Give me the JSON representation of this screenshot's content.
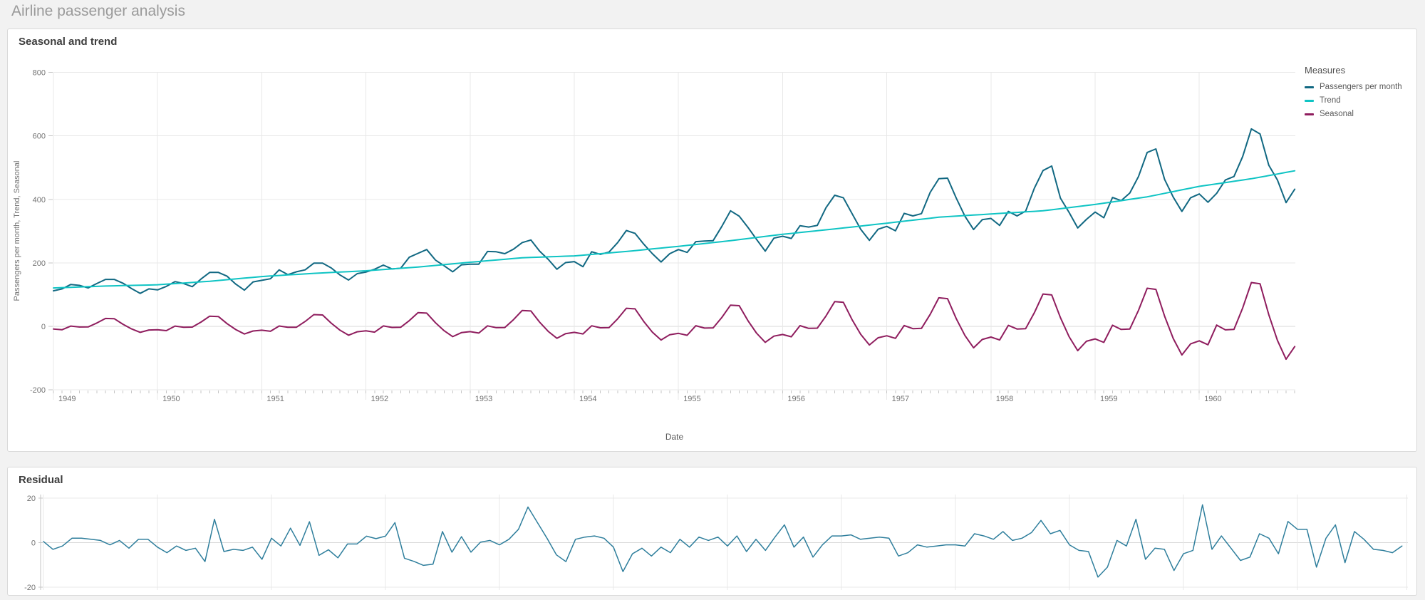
{
  "page": {
    "title": "Airline passenger analysis"
  },
  "cards": {
    "seasonal_trend": {
      "title": "Seasonal and trend"
    },
    "residual": {
      "title": "Residual"
    }
  },
  "legend": {
    "title": "Measures",
    "items": [
      {
        "label": "Passengers per month",
        "color": "#116882"
      },
      {
        "label": "Trend",
        "color": "#0fc4c4"
      },
      {
        "label": "Seasonal",
        "color": "#8f1d5e"
      }
    ]
  },
  "colors": {
    "grid": "#e8e8e8",
    "zero_line": "#d9d9d9",
    "tick": "#c6c6c6",
    "axis_text": "#737373",
    "axis_label_text": "#595959"
  },
  "chart_data": [
    {
      "type": "line",
      "title": "Seasonal and trend",
      "xlabel": "Date",
      "ylabel": "Passengers per month, Trend, Seasonal",
      "x_tick_labels": [
        "1949",
        "1950",
        "1951",
        "1952",
        "1953",
        "1954",
        "1955",
        "1956",
        "1957",
        "1958",
        "1959",
        "1960"
      ],
      "months_per_tick": 12,
      "n_points": 144,
      "ylim": [
        -200,
        800
      ],
      "yticks": [
        800,
        600,
        400,
        200,
        0,
        -200
      ],
      "grid": true,
      "legend_position": "right",
      "series": [
        {
          "name": "Passengers per month",
          "color": "#116882",
          "values": [
            112,
            118,
            132,
            129,
            121,
            135,
            148,
            148,
            136,
            119,
            104,
            118,
            115,
            126,
            141,
            135,
            125,
            149,
            170,
            170,
            158,
            133,
            114,
            140,
            145,
            150,
            178,
            163,
            172,
            178,
            199,
            199,
            184,
            162,
            146,
            166,
            171,
            180,
            193,
            181,
            183,
            218,
            230,
            242,
            209,
            191,
            172,
            194,
            196,
            196,
            236,
            235,
            229,
            243,
            264,
            272,
            237,
            211,
            180,
            201,
            204,
            188,
            235,
            227,
            234,
            264,
            302,
            293,
            259,
            229,
            203,
            229,
            242,
            233,
            267,
            269,
            270,
            315,
            364,
            347,
            312,
            274,
            237,
            278,
            284,
            277,
            317,
            313,
            318,
            374,
            413,
            405,
            355,
            306,
            271,
            306,
            315,
            301,
            356,
            348,
            355,
            422,
            465,
            467,
            404,
            347,
            305,
            336,
            340,
            318,
            362,
            348,
            363,
            435,
            491,
            505,
            404,
            359,
            310,
            337,
            360,
            342,
            406,
            396,
            420,
            472,
            548,
            559,
            463,
            407,
            362,
            405,
            417,
            391,
            419,
            461,
            472,
            535,
            622,
            606,
            508,
            461,
            390,
            432
          ]
        },
        {
          "name": "Trend",
          "color": "#0fc4c4",
          "values": [
            121,
            122,
            123,
            124,
            125,
            126,
            127,
            127.7,
            128.3,
            129,
            129.7,
            130.3,
            131,
            132.8,
            134.7,
            136.5,
            138.3,
            140.2,
            142,
            144.5,
            147,
            149.5,
            152,
            154.5,
            157,
            158.7,
            160.3,
            162,
            163.7,
            165.3,
            167,
            168.3,
            169.7,
            171,
            172.3,
            173.7,
            175,
            177,
            179,
            181,
            183,
            185,
            187,
            189.5,
            192,
            194.5,
            197,
            199.5,
            202,
            204.3,
            206.7,
            209,
            211.3,
            213.7,
            216,
            217,
            218,
            219,
            220,
            221,
            222,
            224.3,
            226.7,
            229,
            231.3,
            233.7,
            236,
            238.7,
            241.3,
            244,
            246.7,
            249.3,
            252,
            255,
            258,
            261,
            264,
            267,
            270,
            273.3,
            276.7,
            280,
            283.3,
            286.7,
            290,
            292.8,
            295.7,
            298.5,
            301.3,
            304.2,
            307,
            310,
            313,
            316,
            319,
            322,
            325,
            328.2,
            331.3,
            334.5,
            337.7,
            340.8,
            344,
            345.7,
            347.3,
            349,
            350.7,
            352.3,
            354,
            355.7,
            357.3,
            359,
            360.7,
            362.3,
            364,
            367.3,
            370.7,
            374,
            377.3,
            380.7,
            384,
            388,
            392,
            396,
            400,
            404,
            408,
            413.5,
            419,
            424.5,
            430,
            435.5,
            441,
            445,
            449,
            453,
            457,
            461,
            465,
            470,
            475,
            480,
            485,
            490
          ]
        },
        {
          "name": "Seasonal",
          "color": "#8f1d5e",
          "values": [
            -8.3,
            -10.5,
            0.8,
            -2,
            -1.8,
            10.5,
            25,
            24.3,
            6.8,
            -8,
            -18.8,
            -11.5,
            -10.6,
            -13.4,
            1,
            -2.6,
            -2.2,
            13.4,
            32,
            31,
            8.6,
            -10.2,
            -24,
            -14.7,
            -12.2,
            -15.5,
            1.1,
            -3,
            -2.6,
            15.5,
            37,
            35.9,
            10,
            -11.8,
            -27.8,
            -17,
            -14.2,
            -18.1,
            1.3,
            -3.4,
            -3,
            18.1,
            43,
            41.7,
            11.6,
            -13.8,
            -32.3,
            -19.8,
            -16.5,
            -21,
            1.5,
            -4,
            -3.5,
            21,
            50,
            48.5,
            13.5,
            -16,
            -37.5,
            -23,
            -18.8,
            -23.9,
            1.7,
            -4.6,
            -4,
            23.9,
            57,
            55.3,
            15.4,
            -18.2,
            -42.8,
            -26.2,
            -22.1,
            -28.1,
            2,
            -5.4,
            -4.7,
            28.1,
            67,
            65,
            18.1,
            -21.4,
            -50.3,
            -30.8,
            -25.7,
            -32.8,
            2.3,
            -6.2,
            -5.5,
            32.8,
            78,
            75.7,
            21.1,
            -25,
            -58.5,
            -35.9,
            -29.7,
            -37.8,
            2.7,
            -7.2,
            -6.3,
            37.8,
            90,
            87.3,
            24.3,
            -28.8,
            -67.5,
            -41.4,
            -33.7,
            -42.8,
            3.1,
            -8.2,
            -7.1,
            42.8,
            102,
            98.9,
            27.5,
            -32.6,
            -76.5,
            -46.9,
            -39.6,
            -50.4,
            3.6,
            -9.6,
            -8.4,
            50.4,
            120,
            116.4,
            32.4,
            -38.4,
            -90,
            -55.2,
            -45.5,
            -58,
            4.1,
            -11,
            -9.7,
            58,
            138,
            133.9,
            37.3,
            -44.2,
            -103.5,
            -63.5
          ]
        }
      ]
    },
    {
      "type": "line",
      "title": "Residual",
      "xlabel": "",
      "ylabel": "",
      "x_tick_labels": [],
      "months_per_tick": 12,
      "n_points": 144,
      "ylim": [
        -21.5,
        21.5
      ],
      "yticks": [
        20,
        0,
        -20
      ],
      "grid": true,
      "legend_position": "none",
      "series": [
        {
          "name": "Residual",
          "color": "#2e7e9c",
          "values": [
            0.5,
            -3,
            -1.5,
            2,
            2,
            1.5,
            1,
            -1,
            1,
            -2.5,
            1.5,
            1.5,
            -2,
            -4.5,
            -1.5,
            -3.5,
            -2.5,
            -8.5,
            10.5,
            -4,
            -3,
            -3.5,
            -2,
            -7.5,
            2,
            -1.5,
            6.5,
            -1.2,
            9.4,
            -5.7,
            -3.2,
            -6.8,
            -0.6,
            -0.6,
            2.9,
            1.8,
            2.9,
            9,
            -7,
            -8.4,
            -10.2,
            -9.7,
            5,
            -4.3,
            2.7,
            -4.3,
            0.2,
            1,
            -1,
            1.5,
            6,
            16,
            9,
            2,
            -5.5,
            -8.5,
            1.5,
            2.5,
            3,
            2,
            -2,
            -13,
            -5,
            -2.5,
            -6,
            -2,
            -4.5,
            1.5,
            -2,
            2.5,
            1,
            2.5,
            -1.5,
            3,
            -4,
            1.5,
            -3.5,
            2.5,
            8,
            -2,
            2.5,
            -6.5,
            -1,
            3,
            3,
            3.5,
            1.5,
            2,
            2.5,
            2,
            -6,
            -4.5,
            -1,
            -2,
            -1.5,
            -1,
            -1,
            -1.5,
            4,
            3,
            1.5,
            5,
            1,
            2,
            4.5,
            10,
            4,
            5.5,
            -1,
            -3.5,
            -4,
            -15.5,
            -11,
            1,
            -1.5,
            10.5,
            -7.5,
            -2.5,
            -3,
            -12.5,
            -5,
            -3.5,
            17,
            -3,
            3,
            -2.5,
            -8,
            -6.5,
            4,
            2,
            -5,
            9.5,
            6,
            6,
            -11,
            2,
            8,
            -9,
            5,
            1.5,
            -3,
            -3.5,
            -4.5,
            -1.5
          ]
        }
      ]
    }
  ]
}
